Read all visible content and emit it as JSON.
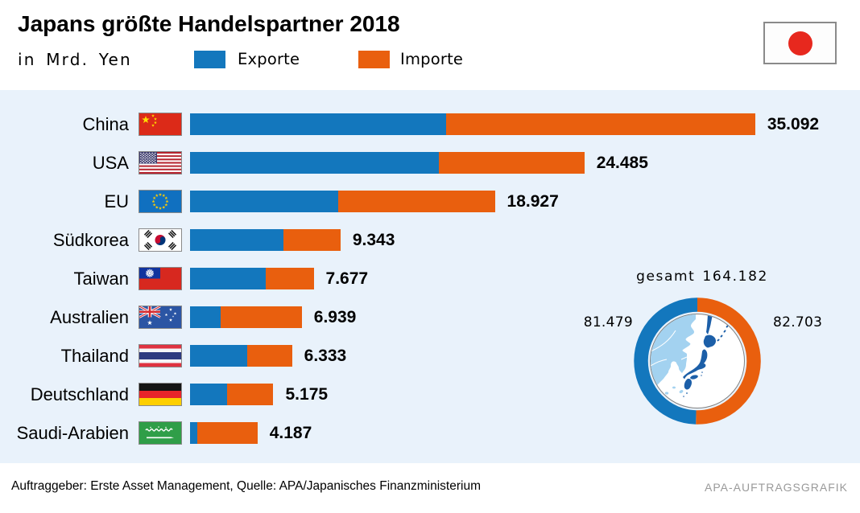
{
  "title": "Japans größte Handelspartner 2018",
  "subtitle": "in Mrd. Yen",
  "legend": {
    "exporte": "Exporte",
    "importe": "Importe"
  },
  "colors": {
    "export_blue": "#1377bd",
    "import_orange": "#e95f0e",
    "chart_background": "#e9f2fb",
    "japan_flag_red": "#e7281e",
    "globe_land": "#a3d2f0",
    "globe_japan": "#1c5fa8"
  },
  "chart_data": {
    "type": "bar",
    "orientation": "horizontal",
    "stacked": true,
    "unit": "Mrd. Yen",
    "categories": [
      "China",
      "USA",
      "EU",
      "Südkorea",
      "Taiwan",
      "Australien",
      "Thailand",
      "Deutschland",
      "Saudi-Arabien"
    ],
    "series": [
      {
        "name": "Exporte",
        "values": [
          15898,
          15470,
          9209,
          5793,
          4679,
          1882,
          3565,
          2314,
          456
        ]
      },
      {
        "name": "Importe",
        "values": [
          19194,
          9015,
          9718,
          3550,
          2998,
          5057,
          2768,
          2861,
          3731
        ]
      }
    ],
    "totals_display": [
      "35.092",
      "24.485",
      "18.927",
      "9.343",
      "7.677",
      "6.939",
      "6.333",
      "5.175",
      "4.187"
    ],
    "flags": [
      "china",
      "usa",
      "eu",
      "suedkorea",
      "taiwan",
      "australien",
      "thailand",
      "deutschland",
      "saudi-arabien"
    ],
    "donut": {
      "title": "gesamt 164.182",
      "total": 164182,
      "exports_value": 81479,
      "imports_value": 82703,
      "exports_label": "81.479",
      "imports_label": "82.703"
    }
  },
  "footer": {
    "source": "Auftraggeber: Erste Asset Management, Quelle: APA/Japanisches Finanzministerium",
    "credit": "APA-AUFTRAGSGRAFIK"
  }
}
